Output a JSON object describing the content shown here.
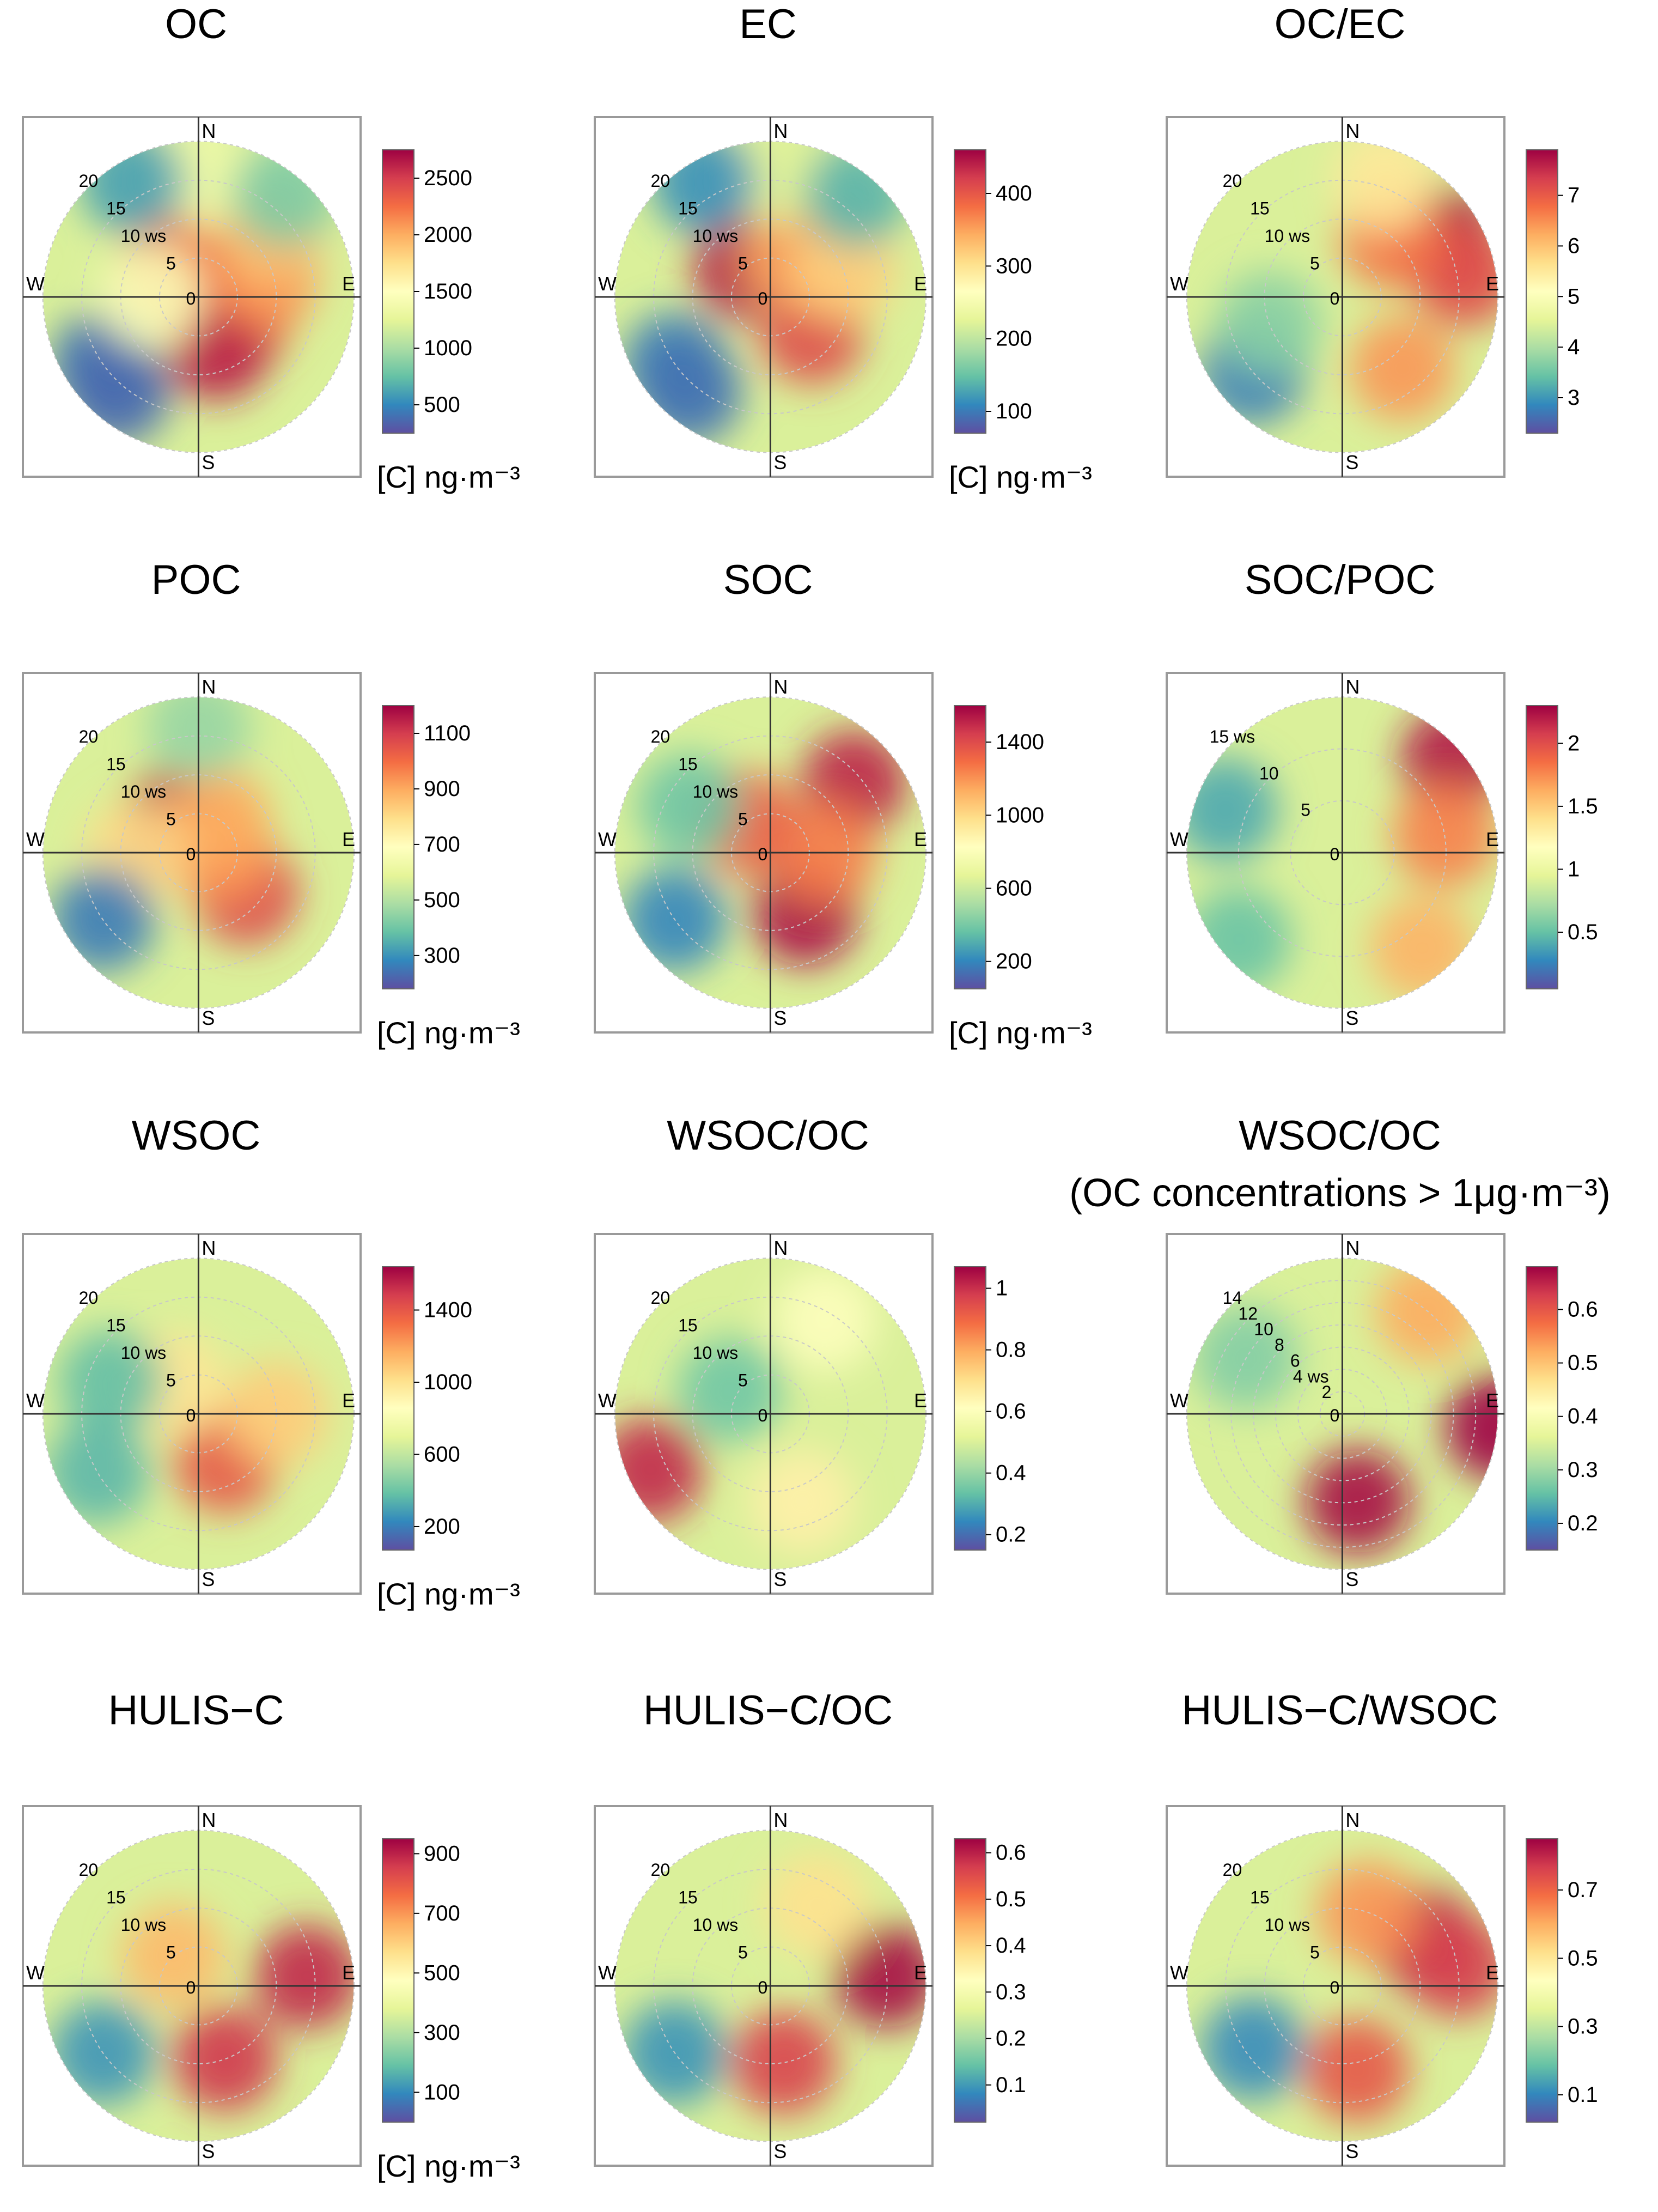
{
  "chart_data": [
    {
      "type": "polar",
      "title": "OC",
      "subtitle": "",
      "unit": "[C] ng·m⁻³",
      "cardinals": [
        "N",
        "E",
        "S",
        "W"
      ],
      "r_ticks": [
        "0",
        "5",
        "10 ws",
        "15",
        "20"
      ],
      "colorbar": {
        "ticks": [
          "500",
          "1000",
          "1500",
          "2000",
          "2500"
        ],
        "min": 250,
        "max": 2750
      },
      "blobs": [
        {
          "theta": 120,
          "r": 6,
          "value": 2300
        },
        {
          "theta": 160,
          "r": 7,
          "value": 2600
        },
        {
          "theta": 75,
          "r": 9,
          "value": 2000
        },
        {
          "theta": 50,
          "r": 12,
          "value": 1800
        },
        {
          "theta": 320,
          "r": 5,
          "value": 2200
        },
        {
          "theta": 0,
          "r": 16,
          "value": 1200
        },
        {
          "theta": 40,
          "r": 17,
          "value": 700
        },
        {
          "theta": 330,
          "r": 17,
          "value": 500
        },
        {
          "theta": 235,
          "r": 15,
          "value": 350
        },
        {
          "theta": 220,
          "r": 16,
          "value": 320
        },
        {
          "theta": 270,
          "r": 6,
          "value": 1300
        }
      ]
    },
    {
      "type": "polar",
      "title": "EC",
      "subtitle": "",
      "unit": "[C] ng·m⁻³",
      "cardinals": [
        "N",
        "E",
        "S",
        "W"
      ],
      "r_ticks": [
        "0",
        "5",
        "10 ws",
        "15",
        "20"
      ],
      "colorbar": {
        "ticks": [
          "100",
          "200",
          "300",
          "400"
        ],
        "min": 70,
        "max": 460
      },
      "blobs": [
        {
          "theta": 320,
          "r": 5,
          "value": 440
        },
        {
          "theta": 130,
          "r": 7,
          "value": 400
        },
        {
          "theta": 30,
          "r": 6,
          "value": 330
        },
        {
          "theta": 70,
          "r": 10,
          "value": 300
        },
        {
          "theta": 0,
          "r": 16,
          "value": 200
        },
        {
          "theta": 40,
          "r": 17,
          "value": 120
        },
        {
          "theta": 330,
          "r": 17,
          "value": 100
        },
        {
          "theta": 235,
          "r": 15,
          "value": 90
        },
        {
          "theta": 220,
          "r": 16,
          "value": 85
        }
      ]
    },
    {
      "type": "polar",
      "title": "OC/EC",
      "subtitle": "",
      "unit": "",
      "cardinals": [
        "N",
        "E",
        "S",
        "W"
      ],
      "r_ticks": [
        "0",
        "5",
        "10 ws",
        "15",
        "20"
      ],
      "colorbar": {
        "ticks": [
          "3",
          "4",
          "5",
          "6",
          "7"
        ],
        "min": 2.3,
        "max": 7.9
      },
      "blobs": [
        {
          "theta": 60,
          "r": 15,
          "value": 7.8
        },
        {
          "theta": 80,
          "r": 16,
          "value": 7
        },
        {
          "theta": 40,
          "r": 10,
          "value": 6.5
        },
        {
          "theta": 140,
          "r": 12,
          "value": 6.2
        },
        {
          "theta": 20,
          "r": 16,
          "value": 5.2
        },
        {
          "theta": 230,
          "r": 15,
          "value": 2.6
        },
        {
          "theta": 250,
          "r": 10,
          "value": 3.4
        }
      ]
    },
    {
      "type": "polar",
      "title": "POC",
      "subtitle": "",
      "unit": "[C] ng·m⁻³",
      "cardinals": [
        "N",
        "E",
        "S",
        "W"
      ],
      "r_ticks": [
        "0",
        "5",
        "10 ws",
        "15",
        "20"
      ],
      "colorbar": {
        "ticks": [
          "300",
          "500",
          "700",
          "900",
          "1100"
        ],
        "min": 180,
        "max": 1200
      },
      "blobs": [
        {
          "theta": 320,
          "r": 5,
          "value": 1150
        },
        {
          "theta": 130,
          "r": 8,
          "value": 1050
        },
        {
          "theta": 90,
          "r": 3,
          "value": 900
        },
        {
          "theta": 30,
          "r": 5,
          "value": 850
        },
        {
          "theta": 270,
          "r": 8,
          "value": 750
        },
        {
          "theta": 0,
          "r": 16,
          "value": 400
        },
        {
          "theta": 235,
          "r": 15,
          "value": 230
        }
      ]
    },
    {
      "type": "polar",
      "title": "SOC",
      "subtitle": "",
      "unit": "[C] ng·m⁻³",
      "cardinals": [
        "N",
        "E",
        "S",
        "W"
      ],
      "r_ticks": [
        "0",
        "5",
        "10 ws",
        "15",
        "20"
      ],
      "colorbar": {
        "ticks": [
          "200",
          "600",
          "1000",
          "1400"
        ],
        "min": 50,
        "max": 1600
      },
      "blobs": [
        {
          "theta": 50,
          "r": 14,
          "value": 1500
        },
        {
          "theta": 150,
          "r": 9,
          "value": 1550
        },
        {
          "theta": 90,
          "r": 7,
          "value": 1200
        },
        {
          "theta": 320,
          "r": 5,
          "value": 1300
        },
        {
          "theta": 300,
          "r": 12,
          "value": 300
        },
        {
          "theta": 235,
          "r": 15,
          "value": 150
        }
      ]
    },
    {
      "type": "polar",
      "title": "SOC/POC",
      "subtitle": "",
      "unit": "",
      "cardinals": [
        "N",
        "E",
        "S",
        "W"
      ],
      "r_ticks": [
        "0",
        "5",
        "10",
        "15 ws"
      ],
      "colorbar": {
        "ticks": [
          "0.5",
          "1",
          "1.5",
          "2"
        ],
        "min": 0.05,
        "max": 2.3
      },
      "blobs": [
        {
          "theta": 50,
          "r": 14,
          "value": 2.2
        },
        {
          "theta": 80,
          "r": 10,
          "value": 1.7
        },
        {
          "theta": 140,
          "r": 12,
          "value": 1.5
        },
        {
          "theta": 290,
          "r": 12,
          "value": 0.3
        },
        {
          "theta": 230,
          "r": 13,
          "value": 0.4
        }
      ]
    },
    {
      "type": "polar",
      "title": "WSOC",
      "subtitle": "",
      "unit": "[C] ng·m⁻³",
      "cardinals": [
        "N",
        "E",
        "S",
        "W"
      ],
      "r_ticks": [
        "0",
        "5",
        "10 ws",
        "15",
        "20"
      ],
      "colorbar": {
        "ticks": [
          "200",
          "600",
          "1000",
          "1400"
        ],
        "min": 70,
        "max": 1640
      },
      "blobs": [
        {
          "theta": 150,
          "r": 7,
          "value": 1350
        },
        {
          "theta": 90,
          "r": 10,
          "value": 1000
        },
        {
          "theta": 320,
          "r": 5,
          "value": 900
        },
        {
          "theta": 290,
          "r": 12,
          "value": 300
        },
        {
          "theta": 240,
          "r": 15,
          "value": 280
        }
      ]
    },
    {
      "type": "polar",
      "title": "WSOC/OC",
      "subtitle": "",
      "unit": "",
      "cardinals": [
        "N",
        "E",
        "S",
        "W"
      ],
      "r_ticks": [
        "0",
        "5",
        "10 ws",
        "15",
        "20"
      ],
      "colorbar": {
        "ticks": [
          "0.2",
          "0.4",
          "0.6",
          "0.8",
          "1"
        ],
        "min": 0.15,
        "max": 1.07
      },
      "blobs": [
        {
          "theta": 245,
          "r": 17,
          "value": 1.0
        },
        {
          "theta": 160,
          "r": 12,
          "value": 0.6
        },
        {
          "theta": 30,
          "r": 14,
          "value": 0.55
        },
        {
          "theta": 300,
          "r": 6,
          "value": 0.3
        }
      ]
    },
    {
      "type": "polar",
      "title": "WSOC/OC",
      "subtitle": "(OC concentrations > 1μg·m⁻³)",
      "unit": "",
      "cardinals": [
        "N",
        "E",
        "S",
        "W"
      ],
      "r_ticks": [
        "0",
        "2",
        "4 ws",
        "6",
        "8",
        "10",
        "12",
        "14"
      ],
      "colorbar": {
        "ticks": [
          "0.2",
          "0.3",
          "0.4",
          "0.5",
          "0.6"
        ],
        "min": 0.15,
        "max": 0.68
      },
      "blobs": [
        {
          "theta": 95,
          "r": 14,
          "value": 0.68
        },
        {
          "theta": 170,
          "r": 8,
          "value": 0.67
        },
        {
          "theta": 40,
          "r": 12,
          "value": 0.5
        },
        {
          "theta": 300,
          "r": 10,
          "value": 0.25
        }
      ]
    },
    {
      "type": "polar",
      "title": "HULIS−C",
      "subtitle": "",
      "unit": "[C] ng·m⁻³",
      "cardinals": [
        "N",
        "E",
        "S",
        "W"
      ],
      "r_ticks": [
        "0",
        "5",
        "10 ws",
        "15",
        "20"
      ],
      "colorbar": {
        "ticks": [
          "100",
          "300",
          "500",
          "700",
          "900"
        ],
        "min": 0,
        "max": 950
      },
      "blobs": [
        {
          "theta": 85,
          "r": 14,
          "value": 880
        },
        {
          "theta": 160,
          "r": 10,
          "value": 850
        },
        {
          "theta": 320,
          "r": 5,
          "value": 600
        },
        {
          "theta": 235,
          "r": 15,
          "value": 80
        }
      ]
    },
    {
      "type": "polar",
      "title": "HULIS−C/OC",
      "subtitle": "",
      "unit": "",
      "cardinals": [
        "N",
        "E",
        "S",
        "W"
      ],
      "r_ticks": [
        "0",
        "5",
        "10 ws",
        "15",
        "20"
      ],
      "colorbar": {
        "ticks": [
          "0.1",
          "0.2",
          "0.3",
          "0.4",
          "0.5",
          "0.6"
        ],
        "min": 0.02,
        "max": 0.63
      },
      "blobs": [
        {
          "theta": 85,
          "r": 15,
          "value": 0.62
        },
        {
          "theta": 170,
          "r": 10,
          "value": 0.55
        },
        {
          "theta": 30,
          "r": 12,
          "value": 0.35
        },
        {
          "theta": 235,
          "r": 15,
          "value": 0.07
        }
      ]
    },
    {
      "type": "polar",
      "title": "HULIS−C/WSOC",
      "subtitle": "",
      "unit": "",
      "cardinals": [
        "N",
        "E",
        "S",
        "W"
      ],
      "r_ticks": [
        "0",
        "5",
        "10 ws",
        "15",
        "20"
      ],
      "colorbar": {
        "ticks": [
          "0.1",
          "0.3",
          "0.5",
          "0.7"
        ],
        "min": 0.02,
        "max": 0.85
      },
      "blobs": [
        {
          "theta": 60,
          "r": 12,
          "value": 0.8
        },
        {
          "theta": 80,
          "r": 15,
          "value": 0.75
        },
        {
          "theta": 170,
          "r": 11,
          "value": 0.7
        },
        {
          "theta": 20,
          "r": 10,
          "value": 0.6
        },
        {
          "theta": 235,
          "r": 14,
          "value": 0.08
        }
      ]
    }
  ],
  "colors": {
    "colormap": [
      "#5e4fa2",
      "#3288bd",
      "#66c2a5",
      "#abdda4",
      "#e6f598",
      "#ffffbf",
      "#fee08b",
      "#fdae61",
      "#f46d43",
      "#d53e4f",
      "#9e0142"
    ],
    "frame": "#9a9a9a",
    "crosshair": "#333333",
    "text": "#000000"
  }
}
